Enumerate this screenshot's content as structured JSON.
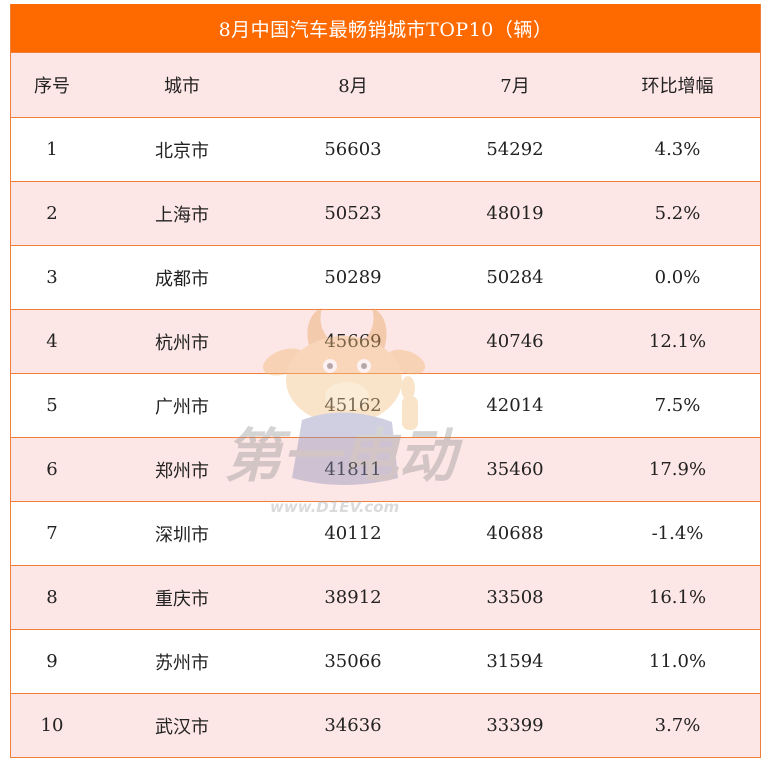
{
  "title": "8月中国汽车最畅销城市TOP10（辆）",
  "columns": {
    "rank": "序号",
    "city": "城市",
    "aug": "8月",
    "jul": "7月",
    "mom": "环比增幅"
  },
  "rows": [
    {
      "rank": "1",
      "city": "北京市",
      "aug": "56603",
      "jul": "54292",
      "mom": "4.3%"
    },
    {
      "rank": "2",
      "city": "上海市",
      "aug": "50523",
      "jul": "48019",
      "mom": "5.2%"
    },
    {
      "rank": "3",
      "city": "成都市",
      "aug": "50289",
      "jul": "50284",
      "mom": "0.0%"
    },
    {
      "rank": "4",
      "city": "杭州市",
      "aug": "45669",
      "jul": "40746",
      "mom": "12.1%"
    },
    {
      "rank": "5",
      "city": "广州市",
      "aug": "45162",
      "jul": "42014",
      "mom": "7.5%"
    },
    {
      "rank": "6",
      "city": "郑州市",
      "aug": "41811",
      "jul": "35460",
      "mom": "17.9%"
    },
    {
      "rank": "7",
      "city": "深圳市",
      "aug": "40112",
      "jul": "40688",
      "mom": "-1.4%"
    },
    {
      "rank": "8",
      "city": "重庆市",
      "aug": "38912",
      "jul": "33508",
      "mom": "16.1%"
    },
    {
      "rank": "9",
      "city": "苏州市",
      "aug": "35066",
      "jul": "31594",
      "mom": "11.0%"
    },
    {
      "rank": "10",
      "city": "武汉市",
      "aug": "34636",
      "jul": "33399",
      "mom": "3.7%"
    }
  ],
  "watermark": {
    "brand_text": "第一电动",
    "url_text": "www.D1EV.com",
    "icon": "deer-mascot-icon"
  },
  "colors": {
    "title_bg": "#fe6a00",
    "border": "#f07f3a",
    "stripe": "#fde6e6"
  }
}
